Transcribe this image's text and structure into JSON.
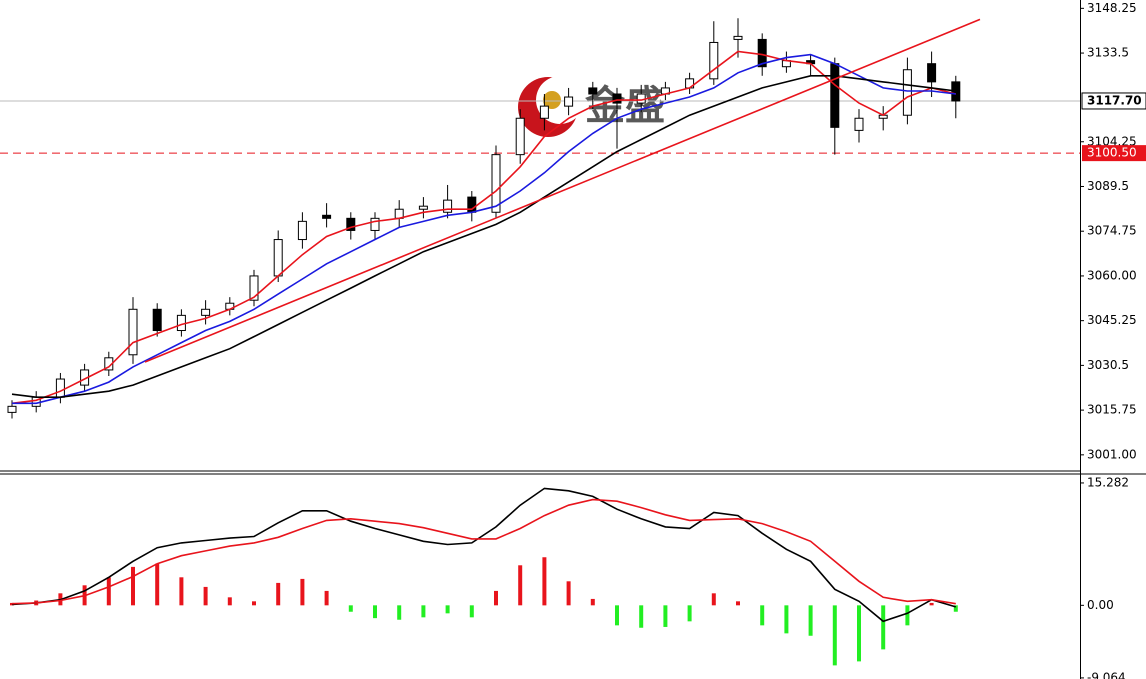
{
  "watermark": "金盛",
  "chart_data": [
    {
      "type": "candlestick",
      "open": [
        3015,
        3017,
        3020,
        3024,
        3029,
        3034,
        3049,
        3042,
        3047,
        3049,
        3052,
        3060,
        3072,
        3080,
        3079,
        3075,
        3079,
        3082,
        3081,
        3086,
        3081,
        3100,
        3112,
        3116,
        3122,
        3120,
        3117,
        3120,
        3122,
        3125,
        3138,
        3138,
        3129,
        3131,
        3130,
        3108,
        3112,
        3113,
        3130,
        3124
      ],
      "high": [
        3019,
        3022,
        3028,
        3031,
        3035,
        3053,
        3051,
        3049,
        3052,
        3053,
        3062,
        3075,
        3081,
        3084,
        3081,
        3081,
        3085,
        3086,
        3090,
        3088,
        3103,
        3115,
        3120,
        3122,
        3124,
        3122,
        3123,
        3124,
        3127,
        3144,
        3145,
        3140,
        3134,
        3133,
        3132,
        3115,
        3116,
        3132,
        3134,
        3126
      ],
      "low": [
        3013,
        3015,
        3018,
        3022,
        3027,
        3031,
        3040,
        3040,
        3044,
        3047,
        3050,
        3058,
        3069,
        3076,
        3072,
        3072,
        3076,
        3079,
        3079,
        3078,
        3079,
        3097,
        3108,
        3113,
        3115,
        3102,
        3114,
        3118,
        3120,
        3123,
        3132,
        3126,
        3127,
        3126,
        3100,
        3104,
        3108,
        3110,
        3119,
        3112
      ],
      "close": [
        3017,
        3020,
        3026,
        3029,
        3033,
        3049,
        3042,
        3047,
        3049,
        3051,
        3060,
        3072,
        3078,
        3079,
        3075,
        3079,
        3082,
        3083,
        3085,
        3081,
        3100,
        3112,
        3116,
        3119,
        3120,
        3117,
        3120,
        3122,
        3125,
        3137,
        3139,
        3129,
        3131,
        3130,
        3109,
        3112,
        3113,
        3128,
        3124,
        3117.7
      ],
      "series": [
        {
          "color": "#e8141c",
          "values": [
            3018,
            3019,
            3022,
            3026,
            3030,
            3038,
            3041,
            3044,
            3046,
            3049,
            3053,
            3060,
            3067,
            3073,
            3076,
            3078,
            3079,
            3081,
            3082,
            3082,
            3088,
            3096,
            3106,
            3112,
            3116,
            3118,
            3118,
            3120,
            3122,
            3128,
            3134,
            3133,
            3131,
            3130,
            3123,
            3117,
            3113,
            3119,
            3122,
            3120
          ]
        },
        {
          "color": "#1a1adf",
          "values": [
            3018,
            3018,
            3020,
            3022,
            3025,
            3030,
            3034,
            3038,
            3042,
            3045,
            3049,
            3054,
            3059,
            3064,
            3068,
            3072,
            3076,
            3078,
            3080,
            3081,
            3083,
            3088,
            3094,
            3101,
            3107,
            3112,
            3115,
            3117,
            3119,
            3122,
            3127,
            3130,
            3132,
            3133,
            3130,
            3126,
            3122,
            3121,
            3121,
            3120
          ]
        },
        {
          "color": "#000000",
          "values": [
            3021,
            3020,
            3020,
            3021,
            3022,
            3024,
            3027,
            3030,
            3033,
            3036,
            3040,
            3044,
            3048,
            3052,
            3056,
            3060,
            3064,
            3068,
            3071,
            3074,
            3077,
            3081,
            3086,
            3091,
            3096,
            3101,
            3105,
            3109,
            3113,
            3116,
            3119,
            3122,
            3124,
            3126,
            3126,
            3125,
            3124,
            3123,
            3122,
            3121
          ]
        }
      ],
      "trendline": {
        "color": "#e8141c",
        "values": [
          3031.6,
          3144.6
        ]
      },
      "price_line": {
        "value": 3117.7,
        "label": "3117.70"
      },
      "alert_line": {
        "value": 3100.5,
        "label": "3100.50",
        "color": "#e8141c"
      },
      "ylim": [
        2996,
        3151
      ],
      "yticks": [
        {
          "value": 3001,
          "label": "3001.00"
        },
        3015.75,
        3030.5,
        3045.25,
        {
          "value": 3060,
          "label": "3060.00"
        },
        3074.75,
        3089.5,
        3104.25,
        3133.5,
        3148.25
      ]
    },
    {
      "type": "macd",
      "histogram": [
        0.3,
        0.6,
        1.5,
        2.5,
        3.5,
        4.8,
        5.2,
        3.5,
        2.3,
        1.0,
        0.5,
        2.8,
        3.3,
        1.8,
        -0.8,
        -1.6,
        -1.8,
        -1.5,
        -1.0,
        -1.5,
        1.8,
        5.0,
        6.0,
        3.0,
        0.8,
        -2.5,
        -2.8,
        -2.7,
        -2.0,
        1.5,
        0.5,
        -2.5,
        -3.5,
        -3.8,
        -7.5,
        -7.0,
        -5.5,
        -2.5,
        0.3,
        -0.8
      ],
      "positive_color": "#e8141c",
      "negative_color": "#22ee22",
      "series": [
        {
          "color": "#000000",
          "values": [
            0.1,
            0.3,
            0.7,
            1.8,
            3.5,
            5.5,
            7.2,
            7.8,
            8.1,
            8.4,
            8.6,
            10.3,
            11.8,
            11.8,
            10.5,
            9.6,
            8.8,
            8.0,
            7.6,
            7.8,
            9.8,
            12.5,
            14.6,
            14.3,
            13.6,
            12.0,
            10.8,
            9.8,
            9.6,
            11.6,
            11.2,
            9.0,
            7.0,
            5.5,
            2.0,
            0.5,
            -2.0,
            -1.0,
            0.7,
            -0.2
          ]
        },
        {
          "color": "#e8141c",
          "values": [
            0.2,
            0.3,
            0.6,
            1.2,
            2.3,
            3.6,
            5.2,
            6.2,
            6.8,
            7.4,
            7.8,
            8.5,
            9.6,
            10.6,
            10.8,
            10.5,
            10.2,
            9.7,
            9.0,
            8.3,
            8.3,
            9.6,
            11.2,
            12.5,
            13.2,
            13.0,
            12.2,
            11.3,
            10.6,
            10.7,
            10.8,
            10.2,
            9.2,
            8.0,
            5.5,
            3.0,
            1.0,
            0.5,
            0.7,
            0.2
          ]
        }
      ],
      "ylim": [
        -9.2,
        16.4
      ],
      "yticks": [
        15.282,
        {
          "value": 0,
          "label": "0.00"
        },
        -9.064
      ]
    }
  ]
}
